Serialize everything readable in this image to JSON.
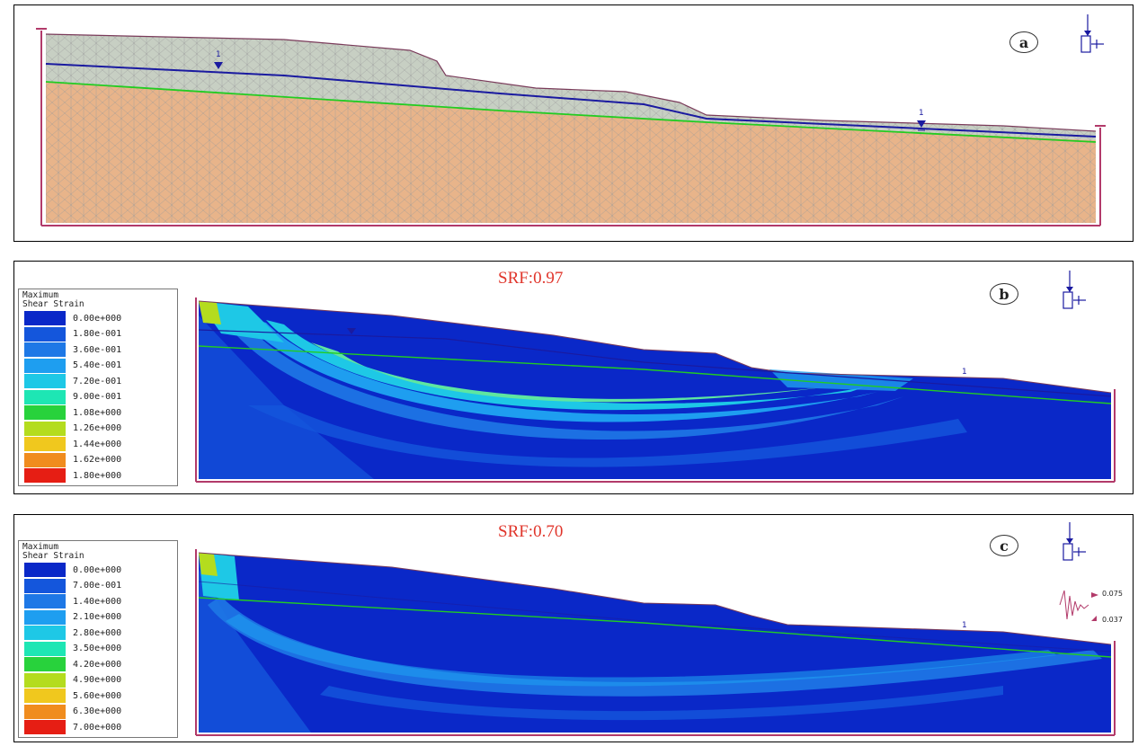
{
  "panel_a": {
    "label": "a",
    "water_table_labels": [
      "1",
      "1"
    ]
  },
  "panel_b": {
    "label": "b",
    "srf": "SRF:0.97",
    "legend_title": "Maximum\nShear Strain",
    "legend_values": [
      "0.00e+000",
      "1.80e-001",
      "3.60e-001",
      "5.40e-001",
      "7.20e-001",
      "9.00e-001",
      "1.08e+000",
      "1.26e+000",
      "1.44e+000",
      "1.62e+000",
      "1.80e+000"
    ],
    "water_table_label": "1"
  },
  "panel_c": {
    "label": "c",
    "srf": "SRF:0.70",
    "legend_title": "Maximum\nShear Strain",
    "legend_values": [
      "0.00e+000",
      "7.00e-001",
      "1.40e+000",
      "2.10e+000",
      "2.80e+000",
      "3.50e+000",
      "4.20e+000",
      "4.90e+000",
      "5.60e+000",
      "6.30e+000",
      "7.00e+000"
    ],
    "water_table_label": "1",
    "seismic_values": [
      "0.075",
      "0.037"
    ]
  },
  "colors": {
    "legend_scale": [
      "#0a28c8",
      "#1456dc",
      "#1e78e6",
      "#1e9ef0",
      "#1ec8e6",
      "#1ee6b4",
      "#28d23c",
      "#b4dc1e",
      "#f0c81e",
      "#f08c1e",
      "#e61e14"
    ],
    "water_table": "#1a1aa0",
    "material_boundary": "#22cc22",
    "srf_text": "#e0352b"
  }
}
